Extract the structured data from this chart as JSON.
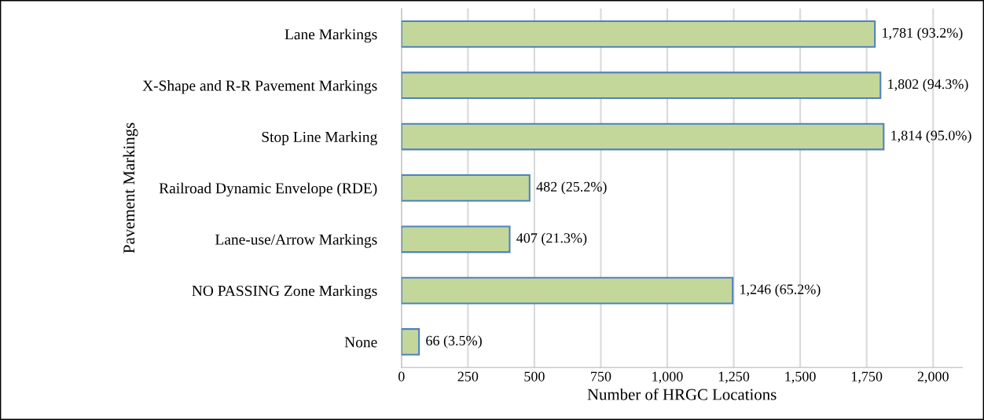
{
  "chart_data": {
    "type": "bar",
    "orientation": "horizontal",
    "xlabel": "Number of HRGC Locations",
    "ylabel": "Pavement Markings",
    "categories": [
      "Lane Markings",
      "X-Shape and R-R Pavement Markings",
      "Stop Line Marking",
      "Railroad Dynamic Envelope (RDE)",
      "Lane-use/Arrow Markings",
      "NO PASSING Zone Markings",
      "None"
    ],
    "values": [
      1781,
      1802,
      1814,
      482,
      407,
      1246,
      66
    ],
    "value_labels": [
      "1,781 (93.2%)",
      "1,802 (94.3%)",
      "1,814 (95.0%)",
      "482 (25.2%)",
      "407 (21.3%)",
      "1,246 (65.2%)",
      "66 (3.5%)"
    ],
    "color": "#c4d79b",
    "xlim": [
      0,
      2110
    ],
    "xticks": [
      0,
      250,
      500,
      750,
      {
        "value": 1000,
        "label": "1,000"
      },
      {
        "value": 1250,
        "label": "1,250"
      },
      {
        "value": 1500,
        "label": "1,500"
      },
      {
        "value": 1750,
        "label": "1,750"
      },
      {
        "value": 2000,
        "label": "2,000"
      }
    ],
    "grid": "x",
    "legend": false
  }
}
